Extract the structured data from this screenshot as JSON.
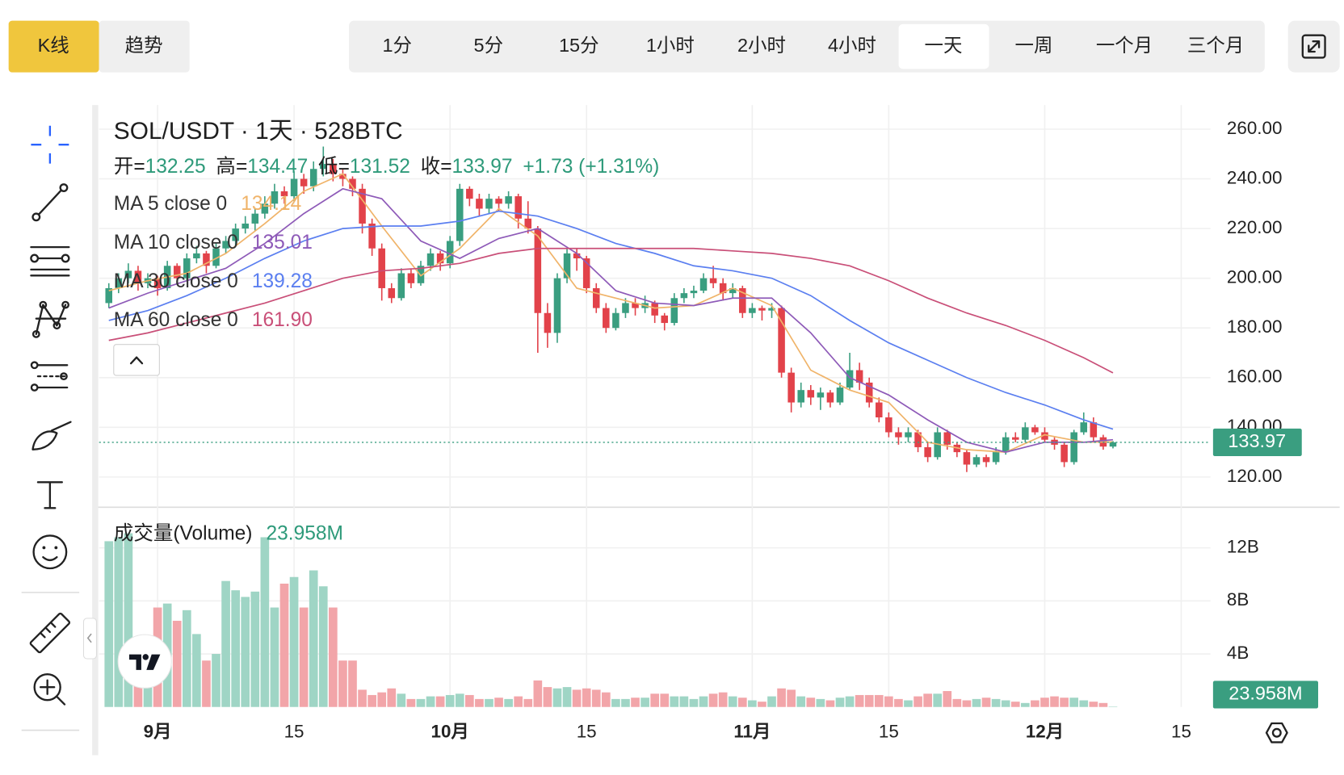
{
  "toolbar": {
    "modes": [
      "K线",
      "趋势"
    ],
    "intervals": [
      "1分",
      "5分",
      "15分",
      "1小时",
      "2小时",
      "4小时",
      "一天",
      "一周",
      "一个月",
      "三个月"
    ]
  },
  "chart_data": {
    "type": "candlestick",
    "title": "SOL/USDT · 1天 · 528BTC",
    "ohlc_labels": [
      "开=",
      "高=",
      "低=",
      "收="
    ],
    "change": "+1.73 (+1.31%)",
    "up_color": "#3a9e80",
    "down_color": "#e2424a",
    "up_volume_color": "#9fd5c5",
    "down_volume_color": "#f2a5a9",
    "x": [
      "08-27",
      "08-28",
      "08-29",
      "08-30",
      "08-31",
      "09-01",
      "09-02",
      "09-03",
      "09-04",
      "09-05",
      "09-06",
      "09-07",
      "09-08",
      "09-09",
      "09-10",
      "09-11",
      "09-12",
      "09-13",
      "09-14",
      "09-15",
      "09-16",
      "09-17",
      "09-18",
      "09-19",
      "09-20",
      "09-21",
      "09-22",
      "09-23",
      "09-24",
      "09-25",
      "09-26",
      "09-27",
      "09-28",
      "09-29",
      "09-30",
      "10-01",
      "10-02",
      "10-03",
      "10-04",
      "10-05",
      "10-06",
      "10-07",
      "10-08",
      "10-09",
      "10-10",
      "10-11",
      "10-12",
      "10-13",
      "10-14",
      "10-15",
      "10-16",
      "10-17",
      "10-18",
      "10-19",
      "10-20",
      "10-21",
      "10-22",
      "10-23",
      "10-24",
      "10-25",
      "10-26",
      "10-27",
      "10-28",
      "10-29",
      "10-30",
      "10-31",
      "11-01",
      "11-02",
      "11-03",
      "11-04",
      "11-05",
      "11-06",
      "11-07",
      "11-08",
      "11-09",
      "11-10",
      "11-11",
      "11-12",
      "11-13",
      "11-14",
      "11-15",
      "11-16",
      "11-17",
      "11-18",
      "11-19",
      "11-20",
      "11-21",
      "11-22",
      "11-23",
      "11-24",
      "11-25",
      "11-26",
      "11-27",
      "11-28",
      "11-29",
      "11-30",
      "12-01",
      "12-02",
      "12-03",
      "12-04",
      "12-05",
      "12-06",
      "12-07",
      "12-08"
    ],
    "open": [
      190,
      196,
      200,
      203,
      198,
      200,
      196,
      205,
      200,
      208,
      210,
      205,
      212,
      215,
      220,
      222,
      226,
      230,
      235,
      233,
      240,
      237,
      244,
      246,
      242,
      240,
      236,
      222,
      212,
      196,
      192,
      202,
      198,
      205,
      210,
      206,
      215,
      236,
      232,
      228,
      232,
      230,
      233,
      224,
      220,
      186,
      178,
      200,
      210,
      208,
      196,
      188,
      180,
      186,
      190,
      188,
      190,
      185,
      182,
      192,
      194,
      195,
      200,
      198,
      194,
      196,
      186,
      188,
      187,
      188,
      162,
      150,
      155,
      152,
      154,
      150,
      156,
      163,
      158,
      150,
      144,
      138,
      136,
      138,
      132,
      128,
      138,
      133,
      130,
      125,
      128,
      126,
      130,
      136,
      135,
      140,
      138,
      135,
      133,
      126,
      138,
      142,
      136,
      132.25
    ],
    "high": [
      198,
      202,
      206,
      205,
      202,
      201,
      207,
      206,
      210,
      213,
      211,
      214,
      217,
      222,
      225,
      228,
      233,
      238,
      237,
      243,
      242,
      247,
      253,
      248,
      244,
      241,
      238,
      224,
      214,
      198,
      204,
      204,
      207,
      212,
      211,
      217,
      238,
      237,
      234,
      234,
      233,
      235,
      234,
      231,
      221,
      190,
      202,
      212,
      212,
      209,
      198,
      190,
      188,
      192,
      192,
      193,
      191,
      186,
      194,
      196,
      197,
      202,
      205,
      200,
      198,
      197,
      190,
      189,
      190,
      189,
      164,
      158,
      157,
      156,
      155,
      158,
      170,
      166,
      160,
      152,
      146,
      140,
      140,
      139,
      134,
      140,
      139,
      134,
      131,
      129,
      129,
      132,
      138,
      138,
      142,
      141,
      140,
      136,
      134,
      139,
      146,
      144,
      137,
      134.47
    ],
    "low": [
      188,
      194,
      198,
      195,
      196,
      193,
      195,
      198,
      199,
      206,
      202,
      204,
      210,
      213,
      218,
      219,
      224,
      228,
      230,
      231,
      234,
      235,
      241,
      239,
      237,
      233,
      218,
      209,
      191,
      190,
      191,
      196,
      197,
      203,
      203,
      204,
      213,
      229,
      225,
      226,
      227,
      228,
      220,
      218,
      170,
      172,
      174,
      198,
      203,
      194,
      186,
      178,
      179,
      184,
      185,
      186,
      182,
      179,
      181,
      190,
      192,
      194,
      196,
      191,
      192,
      184,
      184,
      183,
      184,
      160,
      146,
      148,
      149,
      147,
      148,
      149,
      155,
      155,
      148,
      142,
      136,
      133,
      134,
      130,
      126,
      127,
      131,
      128,
      122,
      124,
      124,
      125,
      129,
      134,
      134,
      137,
      134,
      131,
      124,
      125,
      137,
      134,
      131,
      131.52
    ],
    "close": [
      196,
      200,
      203,
      198,
      200,
      196,
      205,
      200,
      208,
      210,
      205,
      212,
      215,
      220,
      222,
      226,
      230,
      235,
      233,
      240,
      237,
      244,
      246,
      242,
      240,
      236,
      222,
      212,
      196,
      192,
      202,
      198,
      205,
      210,
      206,
      215,
      236,
      232,
      228,
      232,
      230,
      233,
      224,
      220,
      186,
      178,
      200,
      210,
      208,
      196,
      188,
      180,
      186,
      190,
      188,
      190,
      185,
      182,
      192,
      194,
      195,
      200,
      198,
      194,
      196,
      186,
      188,
      187,
      188,
      162,
      150,
      155,
      152,
      154,
      150,
      156,
      163,
      158,
      150,
      144,
      138,
      136,
      138,
      132,
      128,
      138,
      133,
      130,
      125,
      128,
      126,
      130,
      136,
      135,
      140,
      138,
      135,
      133,
      126,
      138,
      142,
      136,
      132.25,
      133.97
    ],
    "volume": [
      12500000000.0,
      12800000000.0,
      13100000000.0,
      5000000000.0,
      4500000000.0,
      7500000000.0,
      7800000000.0,
      6500000000.0,
      7300000000.0,
      5500000000.0,
      3500000000.0,
      4000000000.0,
      9500000000.0,
      8800000000.0,
      8300000000.0,
      8700000000.0,
      12800000000.0,
      7500000000.0,
      9300000000.0,
      9800000000.0,
      7500000000.0,
      10300000000.0,
      9100000000.0,
      7500000000.0,
      3500000000.0,
      3500000000.0,
      1300000000.0,
      900000000.0,
      1100000000.0,
      1400000000.0,
      1000000000.0,
      600000000.0,
      600000000.0,
      800000000.0,
      800000000.0,
      900000000.0,
      1000000000.0,
      900000000.0,
      600000000.0,
      600000000.0,
      700000000.0,
      600000000.0,
      800000000.0,
      600000000.0,
      2000000000.0,
      1500000000.0,
      1400000000.0,
      1500000000.0,
      1300000000.0,
      1400000000.0,
      1300000000.0,
      1100000000.0,
      600000000.0,
      600000000.0,
      700000000.0,
      700000000.0,
      1000000000.0,
      1000000000.0,
      800000000.0,
      800000000.0,
      600000000.0,
      800000000.0,
      1000000000.0,
      1100000000.0,
      800000000.0,
      700000000.0,
      500000000.0,
      400000000.0,
      800000000.0,
      1400000000.0,
      1300000000.0,
      800000000.0,
      700000000.0,
      600000000.0,
      500000000.0,
      700000000.0,
      800000000.0,
      900000000.0,
      900000000.0,
      900000000.0,
      800000000.0,
      600000000.0,
      500000000.0,
      800000000.0,
      1000000000.0,
      1000000000.0,
      1200000000.0,
      600000000.0,
      500000000.0,
      600000000.0,
      700000000.0,
      600000000.0,
      500000000.0,
      400000000.0,
      300000000.0,
      500000000.0,
      700000000.0,
      800000000.0,
      700000000.0,
      700000000.0,
      500000000.0,
      400000000.0,
      300000000.0,
      23958000
    ],
    "volume_legend": {
      "name": "成交量(Volume)",
      "value": 23958000,
      "label": "23.958M"
    },
    "xlim": [
      "08-26",
      "12-18"
    ],
    "xticks": [
      {
        "value": "09-01",
        "label": "9月"
      },
      {
        "value": "09-15",
        "label": "15"
      },
      {
        "value": "10-01",
        "label": "10月"
      },
      {
        "value": "10-15",
        "label": "15"
      },
      {
        "value": "11-01",
        "label": "11月"
      },
      {
        "value": "11-15",
        "label": "15"
      },
      {
        "value": "12-01",
        "label": "12月"
      },
      {
        "value": "12-15",
        "label": "15"
      }
    ],
    "ylim": [
      108.2,
      269.7
    ],
    "yticks": [
      {
        "value": 120,
        "label": "120.00"
      },
      {
        "value": 140,
        "label": "140.00"
      },
      {
        "value": 160,
        "label": "160.00"
      },
      {
        "value": 180,
        "label": "180.00"
      },
      {
        "value": 200,
        "label": "200.00"
      },
      {
        "value": 220,
        "label": "220.00"
      },
      {
        "value": 240,
        "label": "240.00"
      },
      {
        "value": 260,
        "label": "260.00"
      }
    ],
    "volume_ylim": [
      0,
      15000000000.0
    ],
    "volume_yticks": [
      {
        "value": 4000000000.0,
        "label": "4B"
      },
      {
        "value": 8000000000.0,
        "label": "8B"
      },
      {
        "value": 12000000000.0,
        "label": "12B"
      }
    ],
    "grid": true,
    "ma_x": [
      "08-27",
      "08-31",
      "09-04",
      "09-08",
      "09-12",
      "09-16",
      "09-20",
      "09-24",
      "09-28",
      "10-02",
      "10-06",
      "10-10",
      "10-14",
      "10-18",
      "10-22",
      "10-26",
      "10-30",
      "11-03",
      "11-07",
      "11-11",
      "11-15",
      "11-19",
      "11-23",
      "11-27",
      "12-01",
      "12-05",
      "12-08"
    ],
    "ma": [
      {
        "name": "MA 5 close 0",
        "color": "#f0b46a",
        "legend_value": 134.14,
        "values": [
          195,
          199,
          202,
          210,
          222,
          235,
          242,
          221,
          201,
          212,
          228,
          217,
          196,
          192,
          188,
          189,
          196,
          189,
          163,
          155,
          150,
          134,
          131,
          130,
          137,
          134,
          134.14
        ]
      },
      {
        "name": "MA 10 close 0",
        "color": "#8e5ab8",
        "legend_value": 135.01,
        "values": [
          188,
          194,
          199,
          204,
          214,
          226,
          236,
          232,
          215,
          208,
          216,
          220,
          210,
          195,
          190,
          189,
          192,
          192,
          178,
          160,
          153,
          143,
          134,
          130,
          134,
          134,
          135.01
        ]
      },
      {
        "name": "MA 30 close 0",
        "color": "#5b7ff0",
        "legend_value": 139.28,
        "values": [
          183,
          187,
          193,
          200,
          208,
          215,
          220,
          221,
          221,
          223,
          227,
          225,
          220,
          214,
          210,
          205,
          203,
          200,
          193,
          183,
          174,
          167,
          160,
          154,
          149,
          143,
          139.28
        ]
      },
      {
        "name": "MA 60 close 0",
        "color": "#c94f78",
        "legend_value": {
          "value": 161.9,
          "label": "161.90"
        },
        "values": [
          175,
          178,
          182,
          186,
          190,
          195,
          200,
          203,
          204,
          206,
          210,
          212,
          212,
          212,
          212,
          212,
          211,
          210,
          208,
          205,
          199,
          192,
          186,
          181,
          175,
          168,
          161.9
        ]
      }
    ]
  }
}
